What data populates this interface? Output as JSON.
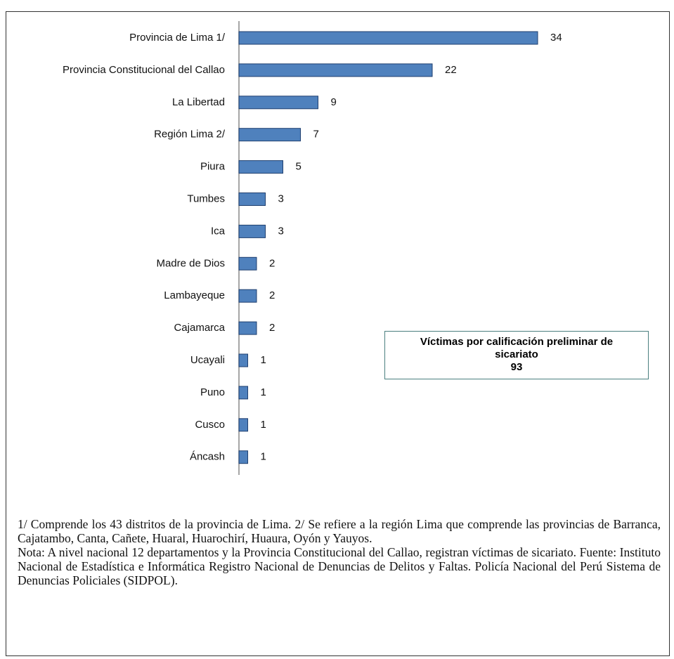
{
  "chart_data": {
    "type": "bar",
    "orientation": "horizontal",
    "categories": [
      "Provincia de Lima 1/",
      "Provincia Constitucional del Callao",
      "La Libertad",
      "Región Lima 2/",
      "Piura",
      "Tumbes",
      "Ica",
      "Madre de Dios",
      "Lambayeque",
      "Cajamarca",
      "Ucayali",
      "Puno",
      "Cusco",
      "Áncash"
    ],
    "values": [
      34,
      22,
      9,
      7,
      5,
      3,
      3,
      2,
      2,
      2,
      1,
      1,
      1,
      1
    ],
    "color": "#4f81bd",
    "annotation": {
      "text": "Víctimas por calificación preliminar de sicariato",
      "value": 93
    }
  },
  "notes": [
    "1/ Comprende los 43 distritos de la provincia de Lima. 2/ Se refiere a la región Lima que comprende las provincias de Barranca, Cajatambo, Canta, Cañete, Huaral, Huarochirí, Huaura, Oyón y Yauyos.",
    "Nota: A nivel nacional 12 departamentos y la Provincia Constitucional del Callao, registran víctimas de sicariato. Fuente: Instituto Nacional de Estadística e Informática Registro Nacional de Denuncias de Delitos y Faltas. Policía Nacional del Perú Sistema de Denuncias Policiales (SIDPOL)."
  ]
}
